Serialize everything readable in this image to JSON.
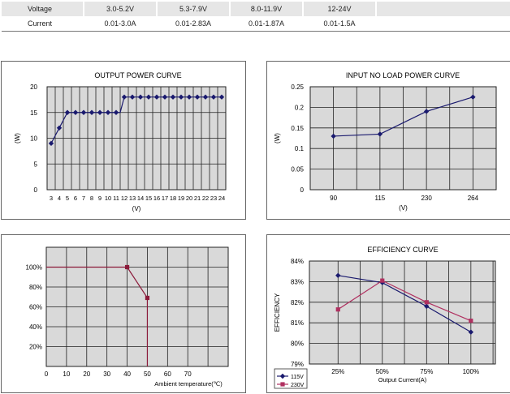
{
  "spec_table": {
    "rows": [
      {
        "label": "Voltage",
        "values": [
          "3.0-5.2V",
          "5.3-7.9V",
          "8.0-11.9V",
          "12-24V"
        ]
      },
      {
        "label": "Current",
        "values": [
          "0.01-3.0A",
          "0.01-2.83A",
          "0.01-1.87A",
          "0.01-1.5A"
        ]
      }
    ]
  },
  "chart_data": [
    {
      "type": "line",
      "title": "OUTPUT POWER CURVE",
      "xlabel": "(V)",
      "ylabel": "(W)",
      "categories": [
        "3",
        "4",
        "5",
        "6",
        "7",
        "8",
        "9",
        "10",
        "11",
        "12",
        "13",
        "14",
        "15",
        "16",
        "17",
        "18",
        "19",
        "20",
        "21",
        "22",
        "23",
        "24"
      ],
      "series": [
        {
          "values": [
            9,
            12,
            15,
            15,
            15,
            15,
            15,
            15,
            15,
            15,
            18,
            18,
            18,
            18,
            18,
            18,
            18,
            18,
            18,
            18,
            18,
            18,
            18
          ]
        }
      ],
      "x": [
        3,
        4,
        5,
        6,
        7,
        8,
        9,
        10,
        11,
        11.5,
        12,
        13,
        14,
        15,
        16,
        17,
        18,
        19,
        20,
        21,
        22,
        23,
        24
      ],
      "ylim": [
        0,
        20
      ],
      "yticks": [
        "0",
        "5",
        "10",
        "15",
        "20"
      ],
      "grid": true,
      "color": "#1a1a6e"
    },
    {
      "type": "line",
      "title": "INPUT NO LOAD POWER CURVE",
      "xlabel": "(V)",
      "ylabel": "(W)",
      "categories": [
        "90",
        "115",
        "230",
        "264"
      ],
      "series": [
        {
          "values": [
            0.13,
            0.135,
            0.19,
            0.225
          ]
        }
      ],
      "ylim": [
        0,
        0.25
      ],
      "yticks": [
        "0",
        "0.05",
        "0.1",
        "0.15",
        "0.2",
        "0.25"
      ],
      "grid": true,
      "color": "#1a1a6e"
    },
    {
      "type": "line",
      "title": "",
      "xlabel": "Ambient temperature(℃)",
      "ylabel": "",
      "x": [
        0,
        40,
        50,
        50
      ],
      "series": [
        {
          "values": [
            100,
            100,
            69,
            0
          ]
        }
      ],
      "xlim": [
        0,
        90
      ],
      "xticks": [
        "0",
        "10",
        "20",
        "30",
        "40",
        "50",
        "60",
        "70"
      ],
      "ylim": [
        0,
        120
      ],
      "yticks": [
        "20%",
        "40%",
        "60%",
        "80%",
        "100%"
      ],
      "grid": true,
      "color": "#8b1a3a"
    },
    {
      "type": "line",
      "title": "EFFICIENCY CURVE",
      "xlabel": "Output Current(A)",
      "ylabel": "EFFICIENCY",
      "categories": [
        "25%",
        "50%",
        "75%",
        "100%"
      ],
      "series": [
        {
          "name": "115V",
          "values": [
            83.3,
            82.95,
            81.8,
            80.55
          ],
          "color": "#1a1a6e"
        },
        {
          "name": "230V",
          "values": [
            81.65,
            83.05,
            82.0,
            81.1
          ],
          "color": "#b03060"
        }
      ],
      "ylim": [
        79,
        84
      ],
      "yticks": [
        "79%",
        "80%",
        "81%",
        "82%",
        "83%",
        "84%"
      ],
      "grid": true,
      "legend": "bottom-left"
    }
  ]
}
